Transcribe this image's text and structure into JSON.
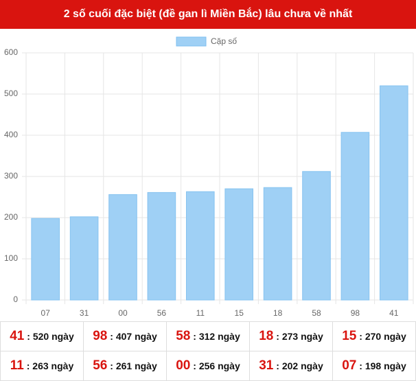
{
  "chart_data": {
    "type": "bar",
    "title": "2 số cuối đặc biệt (đề gan lì Miền Bắc) lâu chưa về nhất",
    "series": [
      {
        "name": "Cặp số",
        "color": "#9fd0f5",
        "values": [
          198,
          202,
          256,
          261,
          263,
          270,
          273,
          312,
          407,
          520
        ]
      }
    ],
    "categories": [
      "07",
      "31",
      "00",
      "56",
      "11",
      "15",
      "18",
      "58",
      "98",
      "41"
    ],
    "ylim": [
      0,
      600
    ],
    "yticks": [
      0,
      100,
      200,
      300,
      400,
      500,
      600
    ],
    "grid": true
  },
  "table": {
    "rows": [
      [
        {
          "code": "41",
          "label": ": 520 ngày"
        },
        {
          "code": "98",
          "label": ": 407 ngày"
        },
        {
          "code": "58",
          "label": ": 312 ngày"
        },
        {
          "code": "18",
          "label": ": 273 ngày"
        },
        {
          "code": "15",
          "label": ": 270 ngày"
        }
      ],
      [
        {
          "code": "11",
          "label": ": 263 ngày"
        },
        {
          "code": "56",
          "label": ": 261 ngày"
        },
        {
          "code": "00",
          "label": ": 256 ngày"
        },
        {
          "code": "31",
          "label": ": 202 ngày"
        },
        {
          "code": "07",
          "label": ": 198 ngày"
        }
      ]
    ]
  }
}
